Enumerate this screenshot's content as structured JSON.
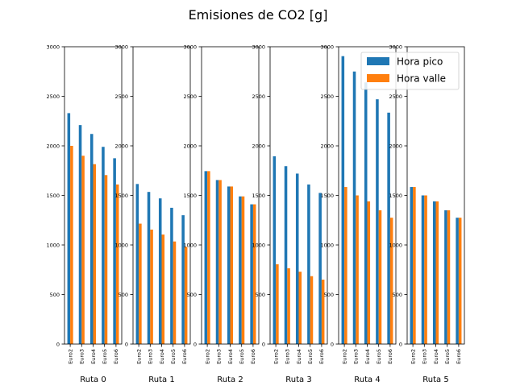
{
  "chart_data": {
    "type": "bar",
    "title": "Emisiones de CO2 [g]",
    "ylim": [
      0,
      3000
    ],
    "yticks": [
      0,
      500,
      1000,
      1500,
      2000,
      2500,
      3000
    ],
    "categories": [
      "Euro2",
      "Euro3",
      "Euro4",
      "Euro5",
      "Euro6"
    ],
    "legend": {
      "placement": "top-right",
      "entries": [
        "Hora pico",
        "Hora valle"
      ]
    },
    "colors": {
      "Hora pico": "#1f77b4",
      "Hora valle": "#ff7f0e"
    },
    "panels": [
      {
        "xlabel": "Ruta 0",
        "series": [
          {
            "name": "Hora pico",
            "values": [
              2330,
              2210,
              2120,
              1990,
              1875
            ]
          },
          {
            "name": "Hora valle",
            "values": [
              2000,
              1900,
              1815,
              1705,
              1610
            ]
          }
        ]
      },
      {
        "xlabel": "Ruta 1",
        "series": [
          {
            "name": "Hora pico",
            "values": [
              1615,
              1535,
              1470,
              1375,
              1300
            ]
          },
          {
            "name": "Hora valle",
            "values": [
              1215,
              1155,
              1105,
              1035,
              980
            ]
          }
        ]
      },
      {
        "xlabel": "Ruta 2",
        "series": [
          {
            "name": "Hora pico",
            "values": [
              1745,
              1655,
              1590,
              1490,
              1410
            ]
          },
          {
            "name": "Hora valle",
            "values": [
              1745,
              1655,
              1590,
              1490,
              1410
            ]
          }
        ]
      },
      {
        "xlabel": "Ruta 3",
        "series": [
          {
            "name": "Hora pico",
            "values": [
              1895,
              1795,
              1720,
              1610,
              1525
            ]
          },
          {
            "name": "Hora valle",
            "values": [
              805,
              765,
              730,
              685,
              650
            ]
          }
        ]
      },
      {
        "xlabel": "Ruta 4",
        "series": [
          {
            "name": "Hora pico",
            "values": [
              2905,
              2750,
              2640,
              2470,
              2335
            ]
          },
          {
            "name": "Hora valle",
            "values": [
              1585,
              1500,
              1440,
              1350,
              1275
            ]
          }
        ]
      },
      {
        "xlabel": "Ruta 5",
        "series": [
          {
            "name": "Hora pico",
            "values": [
              1585,
              1500,
              1440,
              1350,
              1275
            ]
          },
          {
            "name": "Hora valle",
            "values": [
              1585,
              1500,
              1440,
              1350,
              1275
            ]
          }
        ]
      }
    ]
  }
}
